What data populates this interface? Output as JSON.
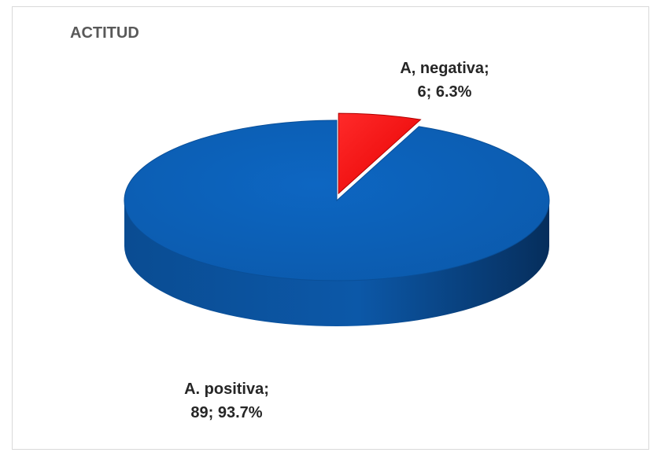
{
  "chart_data": {
    "type": "pie",
    "title": "ACTITUD",
    "slices": [
      {
        "name": "A. positiva",
        "value": 89,
        "percent": "93.7%",
        "color": "#0E5FB4"
      },
      {
        "name": "A, negativa",
        "value": 6,
        "percent": "6.3%",
        "color": "#FF0000"
      }
    ],
    "labels": {
      "positive": {
        "line1": "A. positiva;",
        "line2": "89; 93.7%"
      },
      "negative": {
        "line1": "A, negativa;",
        "line2": "6; 6.3%"
      }
    },
    "style": "3d-exploded"
  }
}
